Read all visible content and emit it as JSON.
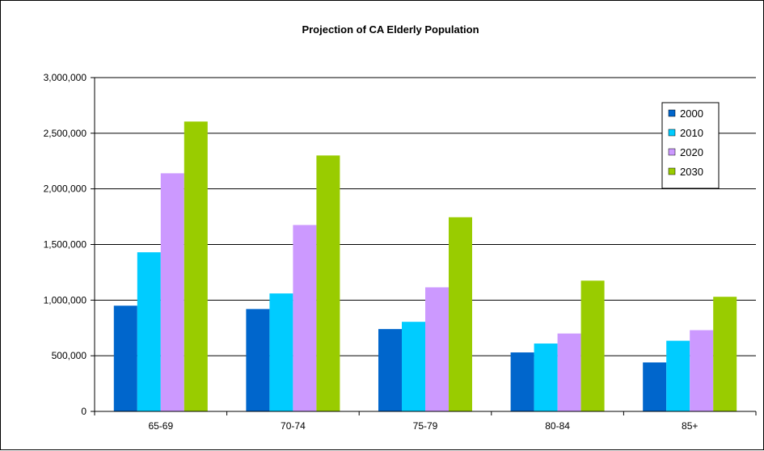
{
  "chart_data": {
    "type": "bar",
    "title": "Projection of CA Elderly Population",
    "xlabel": "",
    "ylabel": "",
    "categories": [
      "65-69",
      "70-74",
      "75-79",
      "80-84",
      "85+"
    ],
    "series": [
      {
        "name": "2000",
        "color": "#0066CC",
        "values": [
          950000,
          920000,
          740000,
          530000,
          440000
        ]
      },
      {
        "name": "2010",
        "color": "#00CCFF",
        "values": [
          1430000,
          1060000,
          805000,
          610000,
          635000
        ]
      },
      {
        "name": "2020",
        "color": "#CC99FF",
        "values": [
          2140000,
          1675000,
          1115000,
          700000,
          730000
        ]
      },
      {
        "name": "2030",
        "color": "#99CC00",
        "values": [
          2605000,
          2300000,
          1745000,
          1175000,
          1030000
        ]
      }
    ],
    "ylim": [
      0,
      3000000
    ],
    "yticks": [
      0,
      500000,
      1000000,
      1500000,
      2000000,
      2500000,
      3000000
    ],
    "ytick_labels": [
      "0",
      "500,000",
      "1,000,000",
      "1,500,000",
      "2,000,000",
      "2,500,000",
      "3,000,000"
    ],
    "grid": true,
    "legend_position": "top-right"
  }
}
